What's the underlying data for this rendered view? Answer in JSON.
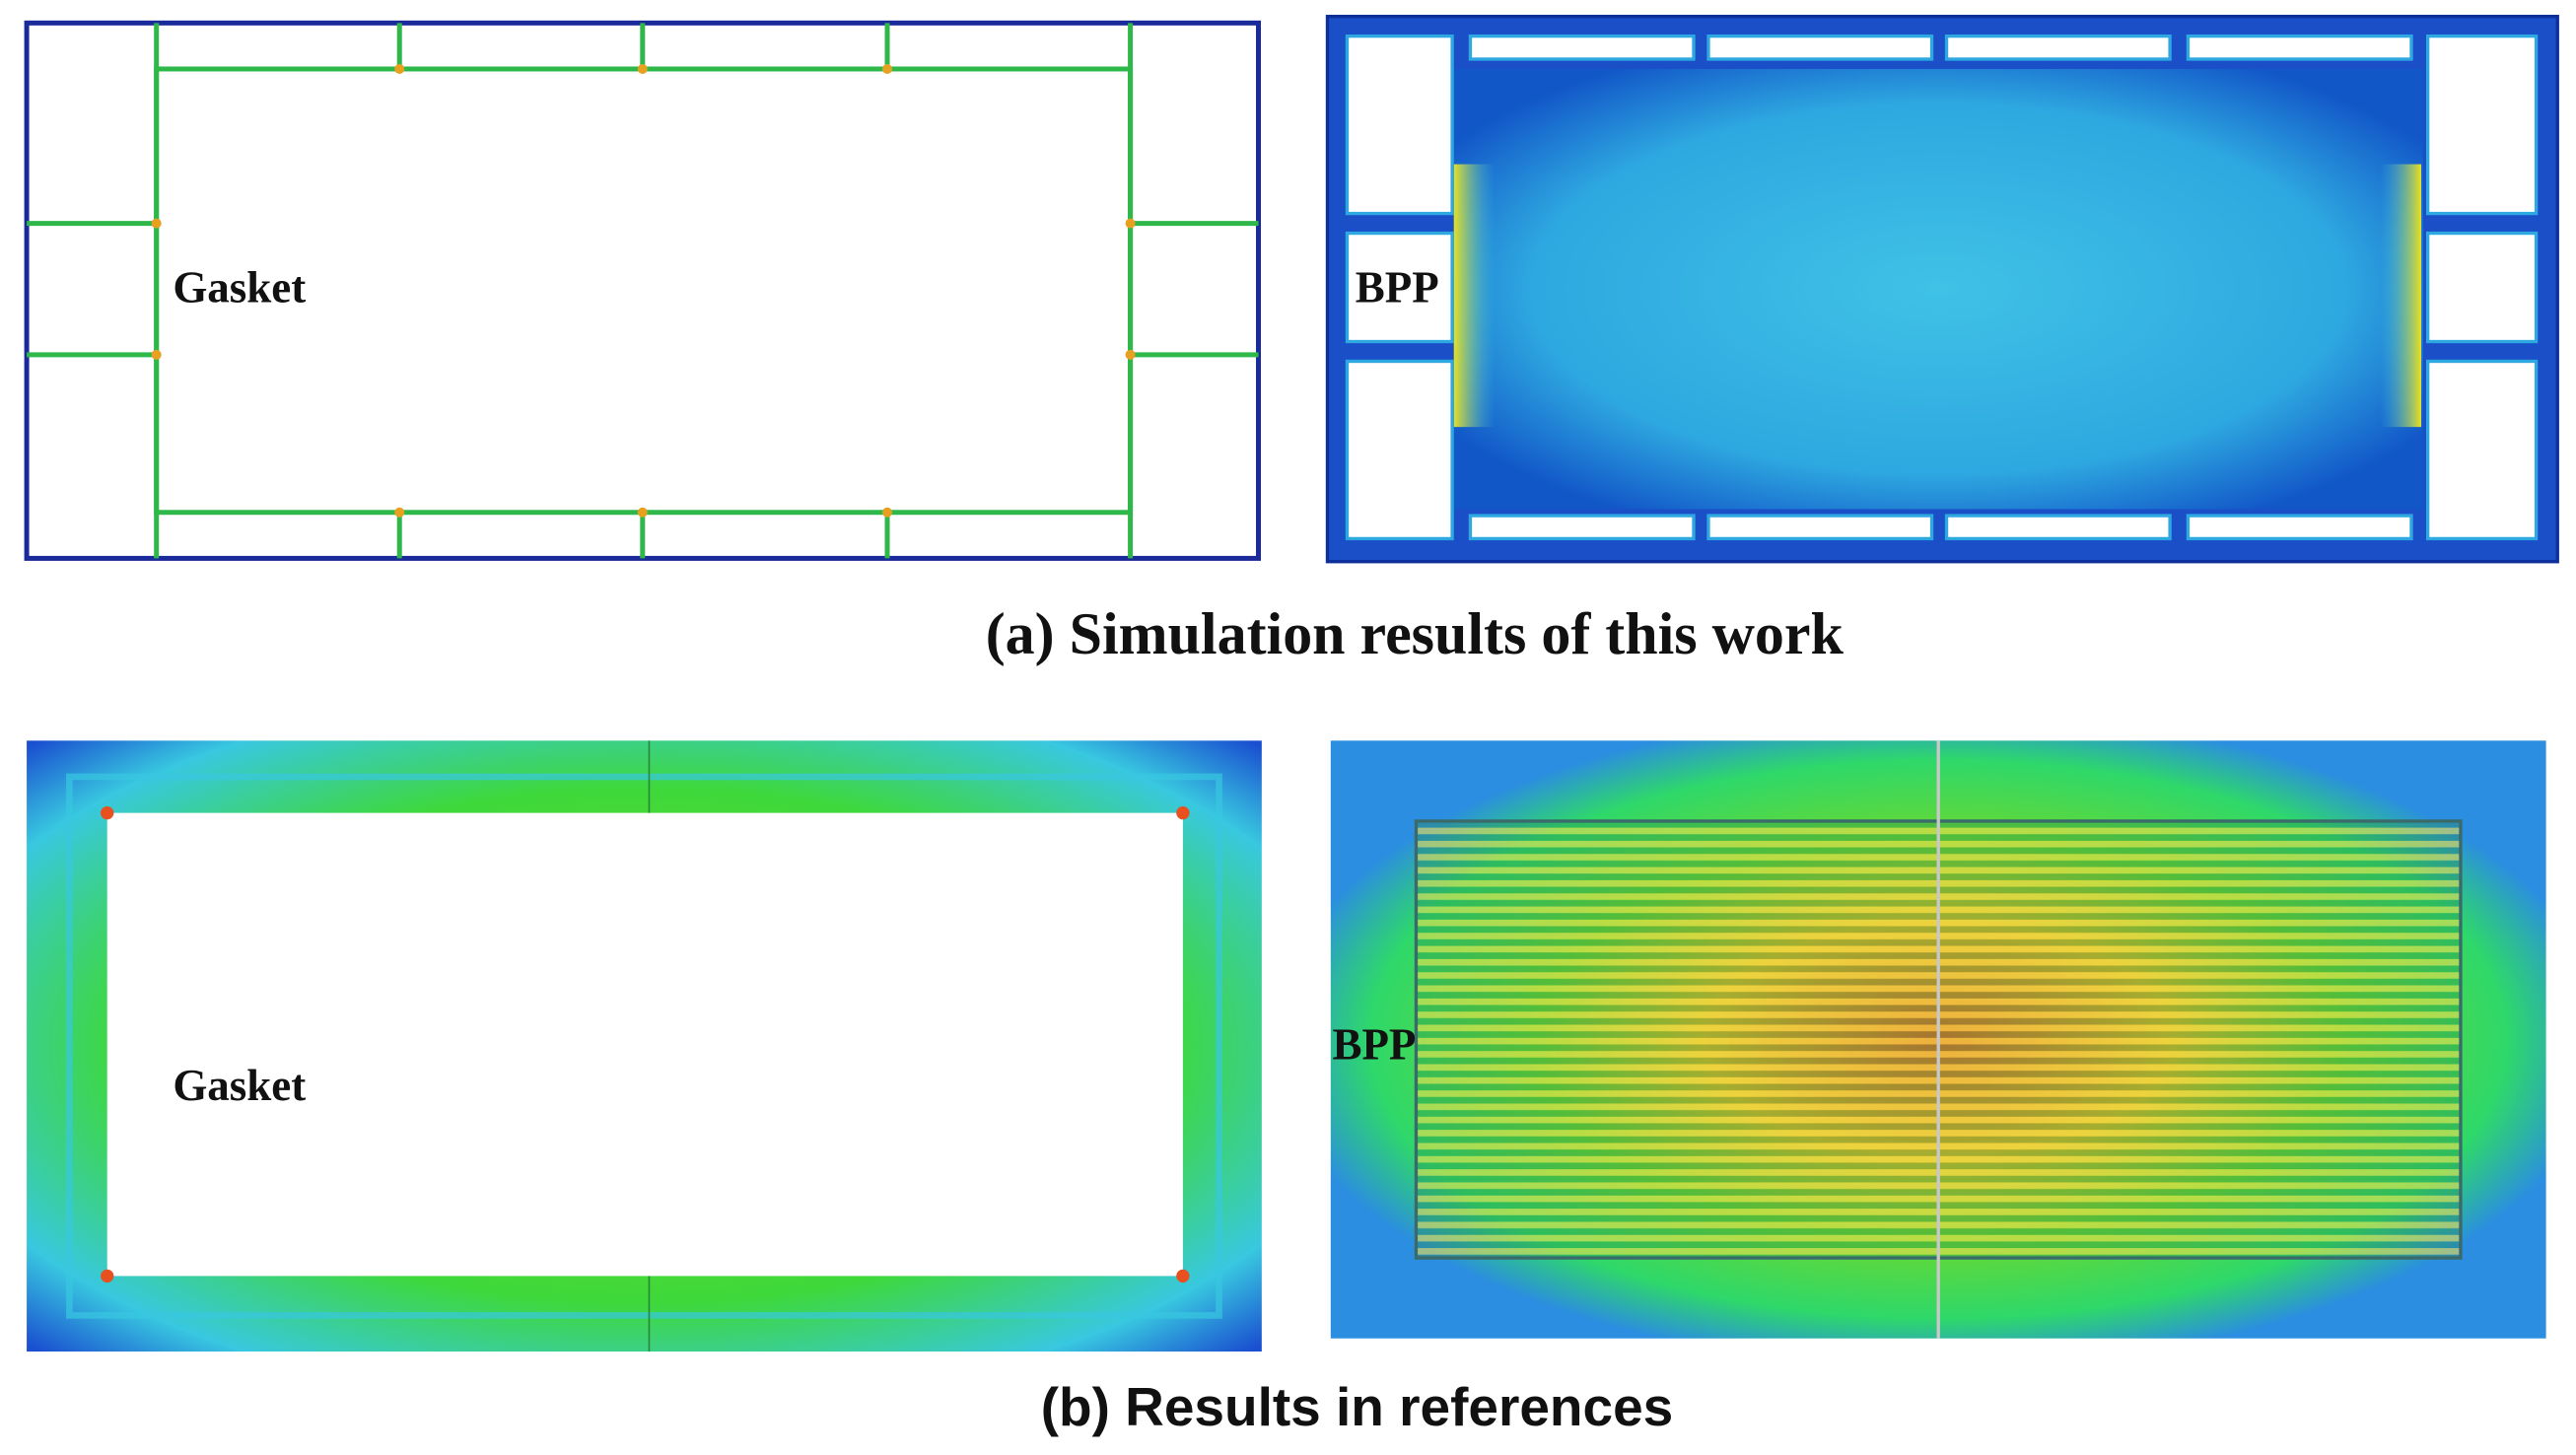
{
  "panels": [
    {
      "caption": "(a) Simulation results of this work",
      "images": [
        {
          "label": "Gasket"
        },
        {
          "label": "BPP"
        }
      ]
    },
    {
      "caption": "(b) Results in references",
      "images": [
        {
          "label": "Gasket"
        },
        {
          "label": "BPP"
        }
      ]
    }
  ]
}
